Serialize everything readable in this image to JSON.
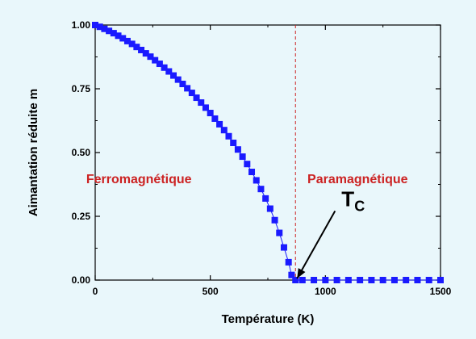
{
  "chart_data": {
    "type": "scatter",
    "xlabel": "Température (K)",
    "ylabel": "Aimantation réduite m",
    "xlim": [
      0,
      1500
    ],
    "ylim": [
      0,
      1
    ],
    "x_ticks": [
      0,
      500,
      1000,
      1500
    ],
    "x_tick_labels": [
      "0",
      "500",
      "1000",
      "1500"
    ],
    "y_ticks": [
      0,
      0.25,
      0.5,
      0.75,
      1.0
    ],
    "y_tick_labels": [
      "0.00",
      "0.25",
      "0.50",
      "0.75",
      "1.00"
    ],
    "grid": false,
    "series": [
      {
        "color": "#1a1aff",
        "marker": "square",
        "connect": true,
        "x": [
          0,
          20,
          40,
          60,
          80,
          100,
          120,
          140,
          160,
          180,
          200,
          220,
          240,
          260,
          280,
          300,
          320,
          340,
          360,
          380,
          400,
          420,
          440,
          460,
          480,
          500,
          520,
          540,
          560,
          580,
          600,
          620,
          640,
          660,
          680,
          700,
          720,
          740,
          760,
          780,
          800,
          820,
          840,
          853,
          870,
          900,
          950,
          1000,
          1050,
          1100,
          1150,
          1200,
          1250,
          1300,
          1350,
          1400,
          1450,
          1500
        ],
        "y": [
          1.0,
          0.993,
          0.985,
          0.977,
          0.968,
          0.958,
          0.948,
          0.937,
          0.926,
          0.914,
          0.902,
          0.889,
          0.876,
          0.862,
          0.848,
          0.833,
          0.818,
          0.802,
          0.786,
          0.769,
          0.752,
          0.734,
          0.715,
          0.696,
          0.676,
          0.655,
          0.633,
          0.611,
          0.588,
          0.564,
          0.538,
          0.512,
          0.484,
          0.455,
          0.424,
          0.391,
          0.357,
          0.32,
          0.28,
          0.235,
          0.185,
          0.128,
          0.07,
          0.02,
          0.0,
          0.0,
          0.0,
          0.0,
          0.0,
          0.0,
          0.0,
          0.0,
          0.0,
          0.0,
          0.0,
          0.0,
          0.0,
          0.0
        ]
      }
    ],
    "vline": {
      "x": 870,
      "color": "#cc2222",
      "style": "dashed"
    },
    "annotations": {
      "ferro": {
        "text": "Ferromagnétique",
        "x": 190,
        "y": 0.38,
        "color": "#cc2222"
      },
      "para": {
        "text": "Paramagnétique",
        "x": 1140,
        "y": 0.38,
        "color": "#cc2222"
      },
      "tc": {
        "main": "T",
        "sub": "C",
        "x": 1070,
        "y": 0.29,
        "arrow_to_x": 870,
        "arrow_to_y": 0.0
      }
    }
  }
}
